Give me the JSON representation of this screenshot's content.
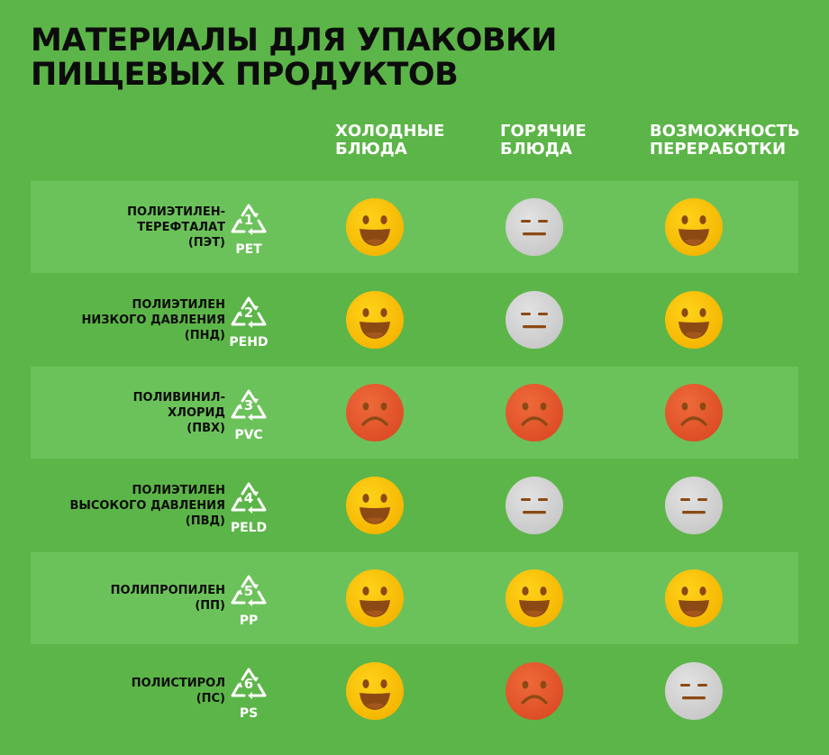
{
  "title": "МАТЕРИАЛЫ ДЛЯ УПАКОВКИ ПИЩЕВЫХ ПРОДУКТОВ",
  "columns": [
    {
      "label": "ХОЛОДНЫЕ\nБЛЮДА"
    },
    {
      "label": "ГОРЯЧИЕ\nБЛЮДА"
    },
    {
      "label": "ВОЗМОЖНОСТЬ\nПЕРЕРАБОТКИ"
    }
  ],
  "colors": {
    "background": "#5cb548",
    "row_shade": "#6cc25a",
    "happy": "#ffd21a",
    "neutral": "#e2e2e2",
    "sad": "#ee6a3a",
    "feature": "#8b4a14"
  },
  "rows": [
    {
      "name": "ПОЛИЭТИЛЕН-\nТЕРЕФТАЛАТ\n(ПЭТ)",
      "number": "1",
      "code": "PET",
      "ratings": [
        "happy",
        "neutral",
        "happy"
      ]
    },
    {
      "name": "ПОЛИЭТИЛЕН\nНИЗКОГО ДАВЛЕНИЯ\n(ПНД)",
      "number": "2",
      "code": "PEHD",
      "ratings": [
        "happy",
        "neutral",
        "happy"
      ]
    },
    {
      "name": "ПОЛИВИНИЛ-\nХЛОРИД\n(ПВХ)",
      "number": "3",
      "code": "PVC",
      "ratings": [
        "sad",
        "sad",
        "sad"
      ]
    },
    {
      "name": "ПОЛИЭТИЛЕН\nВЫСОКОГО ДАВЛЕНИЯ\n(ПВД)",
      "number": "4",
      "code": "PELD",
      "ratings": [
        "happy",
        "neutral",
        "neutral"
      ]
    },
    {
      "name": "ПОЛИПРОПИЛЕН\n(ПП)",
      "number": "5",
      "code": "PP",
      "ratings": [
        "happy",
        "happy",
        "happy"
      ]
    },
    {
      "name": "ПОЛИСТИРОЛ\n(ПС)",
      "number": "6",
      "code": "PS",
      "ratings": [
        "happy",
        "sad",
        "neutral"
      ]
    }
  ]
}
